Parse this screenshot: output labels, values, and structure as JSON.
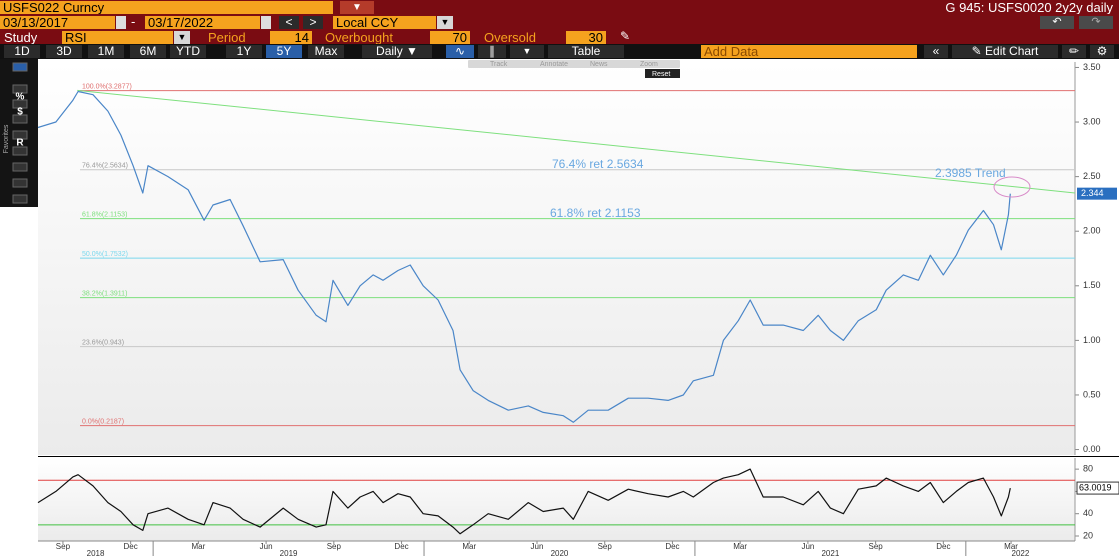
{
  "header": {
    "security": "USFS022 Curncy",
    "title": "G 945: USFS0020 2y2y daily"
  },
  "dates": {
    "start": "03/13/2017",
    "end": "03/17/2022",
    "currency": "Local CCY"
  },
  "study": {
    "label": "Study",
    "name": "RSI",
    "period_label": "Period",
    "period": 14,
    "overbought_label": "Overbought",
    "overbought": 70,
    "oversold_label": "Oversold",
    "oversold": 30
  },
  "toolbar": {
    "ranges": [
      "1D",
      "3D",
      "1M",
      "6M",
      "YTD",
      "1Y",
      "5Y",
      "Max"
    ],
    "active_range": "5Y",
    "frequency": "Daily",
    "table": "Table",
    "add_data": "Add Data",
    "edit_chart": "Edit Chart"
  },
  "chart_tools": [
    "Track",
    "Annotate",
    "News",
    "Zoom"
  ],
  "reset": "Reset",
  "side_label": "Favorites",
  "side_tools": [
    "%",
    "$",
    "R"
  ],
  "chart_data": [
    {
      "type": "line",
      "x": [
        2018.575,
        2018.641,
        2018.704,
        2018.723,
        2018.778,
        2018.833,
        2018.881,
        2018.926,
        2018.962,
        2018.981,
        2019.055,
        2019.129,
        2019.188,
        2019.221,
        2019.284,
        2019.332,
        2019.395,
        2019.48,
        2019.535,
        2019.602,
        2019.638,
        2019.664,
        2019.719,
        2019.764,
        2019.812,
        2019.849,
        2019.904,
        2019.949,
        2019.997,
        2020.052,
        2020.107,
        2020.133,
        2020.181,
        2020.237,
        2020.311,
        2020.385,
        2020.44,
        2020.514,
        2020.551,
        2020.606,
        2020.68,
        2020.754,
        2020.827,
        2020.901,
        2020.957,
        2020.994,
        2021.068,
        2021.105,
        2021.16,
        2021.204,
        2021.252,
        2021.326,
        2021.4,
        2021.455,
        2021.5,
        2021.548,
        2021.603,
        2021.669,
        2021.706,
        2021.769,
        2021.825,
        2021.869,
        2021.917,
        2021.965,
        2022.009,
        2022.065,
        2022.102,
        2022.131,
        2022.157,
        2022.164
      ],
      "series": [
        {
          "color": "#4a86c8",
          "values": [
            2.95,
            3.0,
            3.2,
            3.28,
            3.25,
            3.1,
            2.88,
            2.6,
            2.35,
            2.6,
            2.5,
            2.38,
            2.1,
            2.24,
            2.29,
            2.05,
            1.72,
            1.74,
            1.46,
            1.23,
            1.17,
            1.55,
            1.32,
            1.5,
            1.6,
            1.55,
            1.64,
            1.69,
            1.5,
            1.37,
            1.09,
            0.73,
            0.54,
            0.45,
            0.36,
            0.4,
            0.34,
            0.31,
            0.25,
            0.36,
            0.36,
            0.47,
            0.47,
            0.45,
            0.5,
            0.63,
            0.68,
            1.0,
            1.18,
            1.37,
            1.14,
            1.14,
            1.09,
            1.23,
            1.09,
            1.0,
            1.18,
            1.28,
            1.46,
            1.6,
            1.55,
            1.78,
            1.6,
            1.78,
            2.01,
            2.19,
            2.06,
            1.83,
            2.15,
            2.344
          ]
        }
      ],
      "trend": {
        "x": [
          2018.72,
          2022.403
        ],
        "values": [
          3.29,
          2.35
        ],
        "color": "#7ee07e"
      },
      "levels": [
        {
          "label": "100.0%(3.2877)",
          "value": 3.2877,
          "color": "#e07070"
        },
        {
          "label": "76.4%(2.5634)",
          "value": 2.5634,
          "color": "#c8c8c8"
        },
        {
          "label": "61.8%(2.1153)",
          "value": 2.1153,
          "color": "#7ee07e"
        },
        {
          "label": "50.0%(1.7532)",
          "value": 1.7532,
          "color": "#7ad8ee"
        },
        {
          "label": "38.2%(1.3911)",
          "value": 1.3911,
          "color": "#7ee07e"
        },
        {
          "label": "23.6%(0.943)",
          "value": 0.943,
          "color": "#c8c8c8"
        },
        {
          "label": "0.0%(0.2187)",
          "value": 0.2187,
          "color": "#e07070"
        }
      ],
      "annotations": [
        "76.4% ret 2.5634",
        "61.8% ret 2.1153",
        "2.3985 Trend"
      ],
      "xlim": [
        2018.575,
        2022.403
      ],
      "xticks": [
        {
          "value": 2018.667,
          "label": "Sep"
        },
        {
          "value": 2018.917,
          "label": "Dec"
        },
        {
          "value": 2019.167,
          "label": "Mar"
        },
        {
          "value": 2019.417,
          "label": "Jun"
        },
        {
          "value": 2019.667,
          "label": "Sep"
        },
        {
          "value": 2019.917,
          "label": "Dec"
        },
        {
          "value": 2020.167,
          "label": "Mar"
        },
        {
          "value": 2020.417,
          "label": "Jun"
        },
        {
          "value": 2020.667,
          "label": "Sep"
        },
        {
          "value": 2020.917,
          "label": "Dec"
        },
        {
          "value": 2021.167,
          "label": "Mar"
        },
        {
          "value": 2021.417,
          "label": "Jun"
        },
        {
          "value": 2021.667,
          "label": "Sep"
        },
        {
          "value": 2021.917,
          "label": "Dec"
        },
        {
          "value": 2022.167,
          "label": "Mar"
        }
      ],
      "year_ticks": [
        2018,
        2019,
        2020,
        2021,
        2022
      ],
      "ylim": [
        -0.05,
        3.55
      ],
      "yticks": [
        {
          "value": 0,
          "label": "0.00"
        },
        {
          "value": 0.5,
          "label": "0.50"
        },
        {
          "value": 1,
          "label": "1.00"
        },
        {
          "value": 1.5,
          "label": "1.50"
        },
        {
          "value": 2,
          "label": "2.00"
        },
        {
          "value": 2.5,
          "label": "2.50"
        },
        {
          "value": 3,
          "label": "3.00"
        },
        {
          "value": 3.5,
          "label": "3.50"
        }
      ]
    },
    {
      "type": "line",
      "color": "#111111",
      "values": [
        50,
        60,
        73,
        75,
        65,
        50,
        42,
        30,
        25,
        40,
        45,
        35,
        30,
        50,
        45,
        35,
        28,
        45,
        35,
        28,
        30,
        60,
        45,
        55,
        60,
        50,
        58,
        55,
        40,
        38,
        28,
        22,
        30,
        40,
        35,
        50,
        42,
        45,
        35,
        60,
        52,
        62,
        58,
        55,
        60,
        55,
        68,
        72,
        75,
        80,
        55,
        55,
        48,
        60,
        45,
        40,
        62,
        65,
        72,
        65,
        60,
        68,
        50,
        60,
        68,
        72,
        55,
        38,
        55,
        63.0019
      ],
      "overbought_color": "#e04040",
      "oversold_color": "#40c040",
      "ylim": [
        15.5,
        90
      ],
      "yticks": [
        20,
        40,
        60,
        80
      ]
    }
  ]
}
